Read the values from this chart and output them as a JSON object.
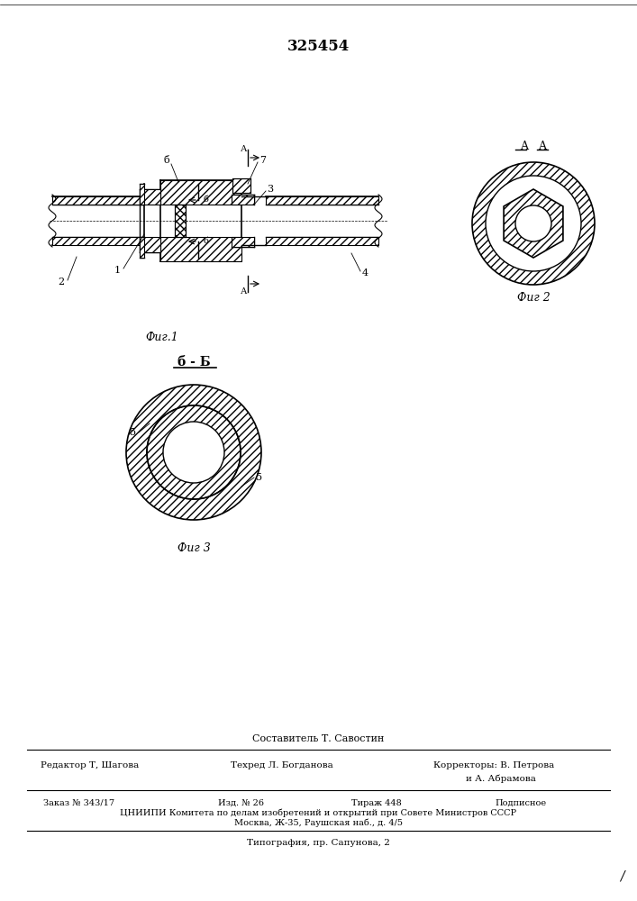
{
  "patent_number": "325454",
  "bg_color": "#ffffff",
  "line_color": "#000000",
  "fig1_label": "Фиг.1",
  "fig2_label": "Фиг 2",
  "fig3_label": "Фиг 3",
  "section_bb": "б - Б",
  "footer_line1": "Составитель Т. Савостин",
  "footer_editor": "Редактор Т, Шагова",
  "footer_tech": "Техред Л. Богданова",
  "footer_corr": "Корректоры: В. Петрова",
  "footer_corr2": "и А. Абрамова",
  "footer_order": "Заказ № 343/17",
  "footer_izd": "Изд. № 26",
  "footer_tirazh": "Тираж 448",
  "footer_podp": "Подписное",
  "footer_cniip": "ЦНИИПИ Комитета по делам изобретений и открытий при Совете Министров СССР",
  "footer_moscow": "Москва, Ж-35, Раушская наб., д. 4/5",
  "footer_print": "Типография, пр. Сапунова, 2"
}
